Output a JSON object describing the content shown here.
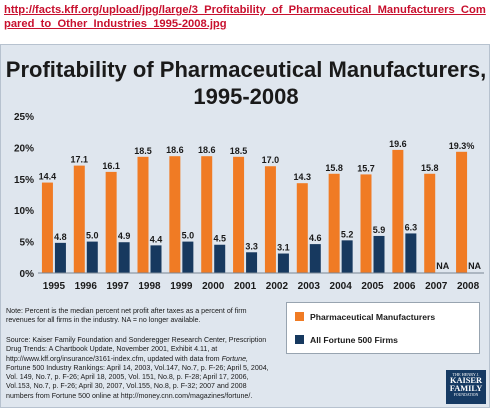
{
  "header": {
    "url": "http://facts.kff.org/upload/jpg/large/3_Profitability_of_Pharmaceutical_Manufacturers_Compared_to_Other_Industries_1995-2008.jpg"
  },
  "chart_data": {
    "type": "bar",
    "title": "Profitability of Pharmaceutical Manufacturers, 1995-2008",
    "categories": [
      "1995",
      "1996",
      "1997",
      "1998",
      "1999",
      "2000",
      "2001",
      "2002",
      "2003",
      "2004",
      "2005",
      "2006",
      "2007",
      "2008"
    ],
    "series": [
      {
        "name": "Pharmaceutical Manufacturers",
        "color": "#f07b24",
        "values": [
          14.4,
          17.1,
          16.1,
          18.5,
          18.6,
          18.6,
          18.5,
          17.0,
          14.3,
          15.8,
          15.7,
          19.6,
          15.8,
          19.3
        ],
        "labels": [
          "14.4",
          "17.1",
          "16.1",
          "18.5",
          "18.6",
          "18.6",
          "18.5",
          "17.0",
          "14.3",
          "15.8",
          "15.7",
          "19.6",
          "15.8",
          "19.3%"
        ]
      },
      {
        "name": "All Fortune 500 Firms",
        "color": "#17395f",
        "values": [
          4.8,
          5.0,
          4.9,
          4.4,
          5.0,
          4.5,
          3.3,
          3.1,
          4.6,
          5.2,
          5.9,
          6.3,
          null,
          null
        ],
        "labels": [
          "4.8",
          "5.0",
          "4.9",
          "4.4",
          "5.0",
          "4.5",
          "3.3",
          "3.1",
          "4.6",
          "5.2",
          "5.9",
          "6.3",
          "NA",
          "NA"
        ]
      }
    ],
    "ylim": [
      0,
      25
    ],
    "yticks": [
      "0%",
      "5%",
      "10%",
      "15%",
      "20%",
      "25%"
    ],
    "ytick_values": [
      0,
      5,
      10,
      15,
      20,
      25
    ],
    "grid": false,
    "legend": "bottom-right",
    "xlabel": "",
    "ylabel": ""
  },
  "footnotes": {
    "note": "Note: Percent is the median percent net profit after taxes as a percent of firm revenues for all firms in the industry.  NA = no longer available.",
    "source_prefix": "Source: Kaiser Family Foundation and Sonderegger Research Center, Prescription Drug Trends: A Chartbook Update, November 2001, Exhibit 4.11, at http://www.kff.org/insurance/3161-index.cfm, updated with data from ",
    "source_fortune": "Fortune,",
    "source_suffix": " Fortune 500 Industry Rankings: April 14, 2003, Vol.147, No.7, p. F-26; April 5, 2004, Vol. 149, No.7, p. F-26; April 18, 2005, Vol. 151, No.8, p. F-28; April 17, 2006, Vol.153, No.7, p. F-26; April 30, 2007, Vol.155, No.8, p. F-32; 2007 and 2008 numbers from Fortune 500 online at http://money.cnn.com/magazines/fortune/."
  },
  "logo": {
    "line1": "THE HENRY J.",
    "line2": "KAISER",
    "line3": "FAMILY",
    "line4": "FOUNDATION"
  }
}
